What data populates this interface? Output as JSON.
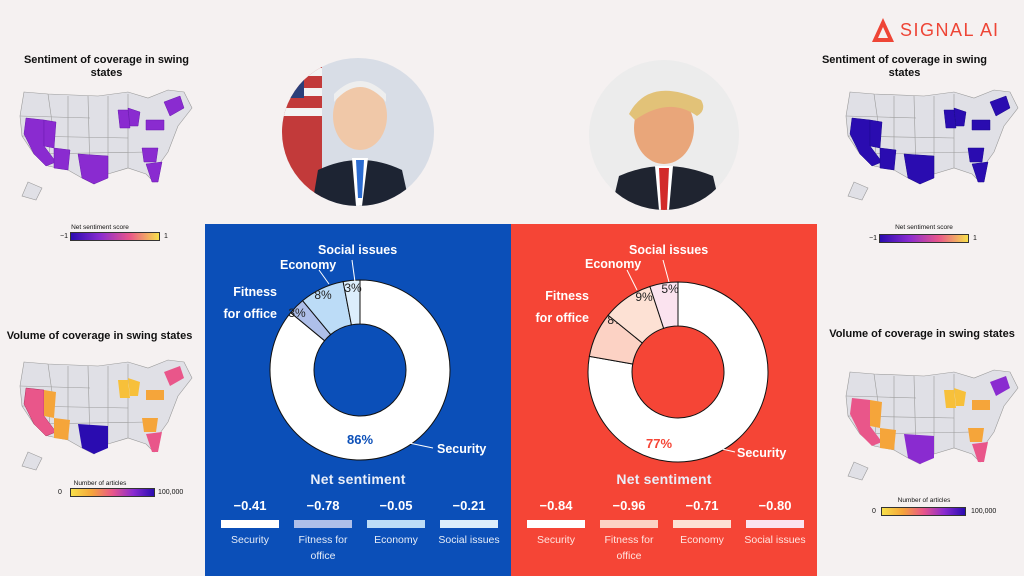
{
  "logo": {
    "text_bold": "SIGNAL",
    "text_light": "AI",
    "color": "#ee4536"
  },
  "left": {
    "sentiment_map_title": "Sentiment of coverage  in swing states",
    "sentiment_scale_label": "Net sentiment score",
    "sentiment_scale_min": "−1",
    "sentiment_scale_max": "1",
    "volume_map_title": "Volume of coverage in swing states",
    "volume_scale_label": "Number of articles",
    "volume_scale_min": "0",
    "volume_scale_max": "100,000"
  },
  "right": {
    "sentiment_map_title": "Sentiment of coverage  in swing states",
    "sentiment_scale_label": "Net sentiment score",
    "sentiment_scale_min": "−1",
    "sentiment_scale_max": "1",
    "volume_map_title": "Volume of coverage in swing states",
    "volume_scale_label": "Number of articles",
    "volume_scale_min": "0",
    "volume_scale_max": "100,000"
  },
  "colors": {
    "panel_blue": "#0b4fb8",
    "panel_red": "#f54536",
    "sentiment_gradient": [
      "#2a0cb0",
      "#8a2bd0",
      "#e9568a",
      "#f7e04a"
    ],
    "volume_gradient": [
      "#f7e04a",
      "#f5a53a",
      "#e9568a",
      "#8a2bd0",
      "#2a0cb0"
    ]
  },
  "chart_data": [
    {
      "type": "pie",
      "subtype": "donut",
      "panel": "blue",
      "categories": [
        "Security",
        "Fitness for office",
        "Economy",
        "Social issues"
      ],
      "values": [
        86,
        3,
        8,
        3
      ],
      "value_labels": [
        "86%",
        "3%",
        "8%",
        "3%"
      ],
      "slice_colors": [
        "#ffffff",
        "#aebfe9",
        "#bcdcf7",
        "#dceefc"
      ],
      "category_labels": [
        "Security",
        "Fitness\nfor office",
        "Economy",
        "Social issues"
      ],
      "net_sentiment_title": "Net sentiment",
      "net_sentiment": [
        {
          "label": "Security",
          "value": "−0.41",
          "color": "#ffffff"
        },
        {
          "label": "Fitness for office",
          "value": "−0.78",
          "color": "#aebfe9"
        },
        {
          "label": "Economy",
          "value": "−0.05",
          "color": "#bcdcf7"
        },
        {
          "label": "Social issues",
          "value": "−0.21",
          "color": "#dceefc"
        }
      ]
    },
    {
      "type": "pie",
      "subtype": "donut",
      "panel": "red",
      "categories": [
        "Security",
        "Fitness for office",
        "Economy",
        "Social issues"
      ],
      "values": [
        77,
        8,
        9,
        5
      ],
      "value_labels": [
        "77%",
        "8%",
        "9%",
        "5%"
      ],
      "slice_colors": [
        "#ffffff",
        "#fcd2c4",
        "#fde1d4",
        "#fbe3ef"
      ],
      "category_labels": [
        "Security",
        "Fitness\nfor office",
        "Economy",
        "Social issues"
      ],
      "net_sentiment_title": "Net sentiment",
      "net_sentiment": [
        {
          "label": "Security",
          "value": "−0.84",
          "color": "#ffffff"
        },
        {
          "label": "Fitness for office",
          "value": "−0.96",
          "color": "#fcd2c4"
        },
        {
          "label": "Economy",
          "value": "−0.71",
          "color": "#fde1d4"
        },
        {
          "label": "Social issues",
          "value": "−0.80",
          "color": "#fbe3ef"
        }
      ]
    }
  ]
}
